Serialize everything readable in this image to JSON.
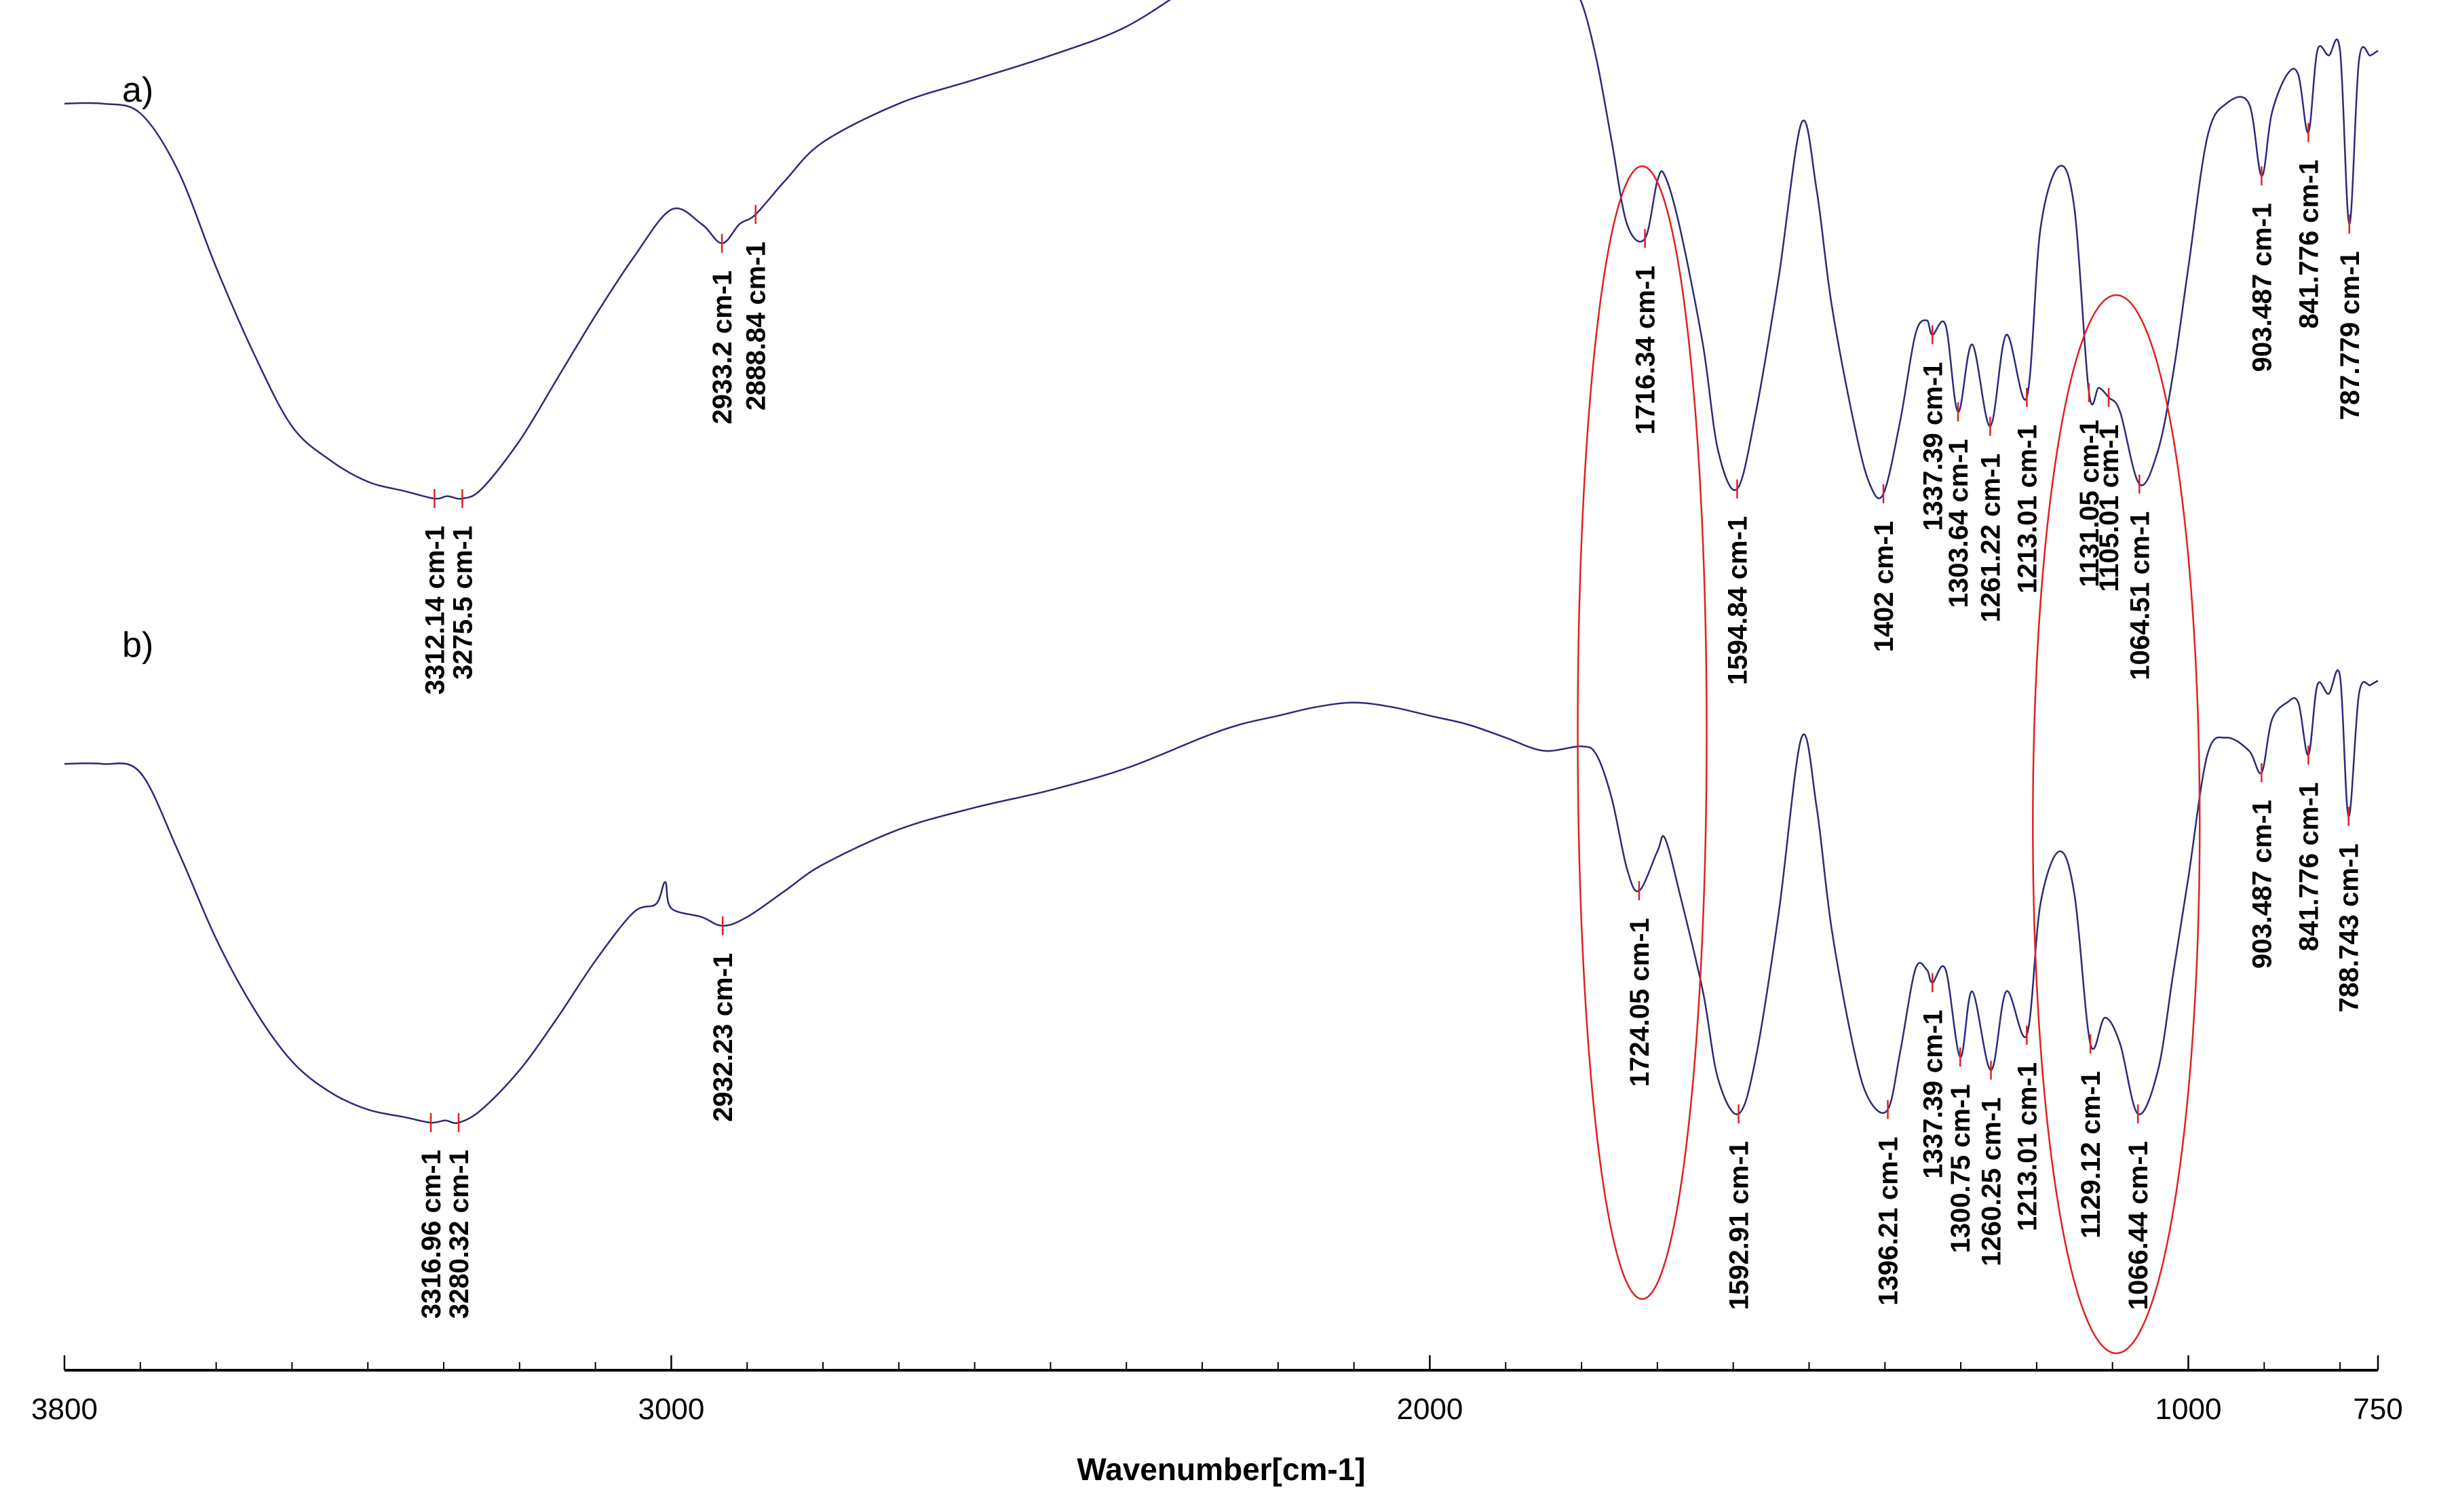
{
  "chart_data": {
    "type": "line",
    "xlabel": "Wavenumber[cm-1]",
    "xlim": [
      3800,
      750
    ],
    "x_reversed": true,
    "x_ticks": [
      3800,
      3000,
      2000,
      1000,
      750
    ],
    "grid": false,
    "colors": {
      "spectrum": "#2b2b7a",
      "ellipse": "#e02020",
      "marker": "#e02020"
    },
    "series": [
      {
        "panel_label": "a)",
        "x": [
          3800,
          3750,
          3700,
          3650,
          3600,
          3550,
          3500,
          3450,
          3400,
          3350,
          3312.14,
          3295,
          3275.5,
          3250,
          3200,
          3150,
          3100,
          3050,
          3000,
          2960,
          2933.2,
          2910,
          2888.84,
          2850,
          2800,
          2700,
          2600,
          2500,
          2400,
          2300,
          2250,
          2200,
          2150,
          2100,
          2050,
          2000,
          1950,
          1900,
          1850,
          1820,
          1800,
          1780,
          1760,
          1740,
          1716.34,
          1700,
          1690,
          1670,
          1640,
          1620,
          1594.84,
          1570,
          1540,
          1510,
          1490,
          1470,
          1440,
          1420,
          1402,
          1380,
          1360,
          1345,
          1337.39,
          1320,
          1303.64,
          1285,
          1261.22,
          1240,
          1213.01,
          1195,
          1170,
          1150,
          1131.05,
          1118,
          1105.01,
          1090,
          1064.51,
          1040,
          1020,
          1000,
          975,
          950,
          920,
          903.487,
          890,
          870,
          855,
          841.776,
          830,
          815,
          800,
          787.779,
          775,
          760,
          750
        ],
        "y": [
          0.82,
          0.82,
          0.8,
          0.68,
          0.48,
          0.3,
          0.15,
          0.08,
          0.035,
          0.015,
          0.0,
          0.005,
          0.0,
          0.02,
          0.12,
          0.25,
          0.38,
          0.5,
          0.6,
          0.57,
          0.53,
          0.57,
          0.59,
          0.66,
          0.74,
          0.82,
          0.87,
          0.92,
          0.98,
          1.08,
          1.12,
          1.16,
          1.18,
          1.19,
          1.18,
          1.16,
          1.12,
          1.09,
          1.05,
          1.07,
          1.03,
          0.91,
          0.74,
          0.57,
          0.54,
          0.66,
          0.67,
          0.56,
          0.32,
          0.1,
          0.02,
          0.18,
          0.46,
          0.78,
          0.64,
          0.4,
          0.15,
          0.03,
          0.01,
          0.16,
          0.34,
          0.37,
          0.34,
          0.36,
          0.18,
          0.32,
          0.15,
          0.34,
          0.21,
          0.56,
          0.69,
          0.6,
          0.22,
          0.23,
          0.21,
          0.18,
          0.03,
          0.1,
          0.26,
          0.48,
          0.75,
          0.82,
          0.82,
          0.67,
          0.8,
          0.88,
          0.88,
          0.76,
          0.93,
          0.92,
          0.93,
          0.57,
          0.91,
          0.92,
          0.93
        ]
      },
      {
        "panel_label": "b)",
        "x": [
          3800,
          3750,
          3700,
          3650,
          3600,
          3550,
          3500,
          3450,
          3400,
          3350,
          3316.96,
          3298,
          3280.32,
          3250,
          3200,
          3150,
          3100,
          3050,
          3020,
          3008,
          3000,
          2960,
          2932.23,
          2900,
          2850,
          2800,
          2700,
          2600,
          2500,
          2400,
          2300,
          2250,
          2200,
          2150,
          2100,
          2050,
          2000,
          1950,
          1900,
          1850,
          1800,
          1780,
          1760,
          1740,
          1724.05,
          1700,
          1690,
          1670,
          1640,
          1620,
          1592.91,
          1570,
          1540,
          1510,
          1490,
          1470,
          1440,
          1420,
          1396.21,
          1380,
          1360,
          1345,
          1337.39,
          1320,
          1300.75,
          1285,
          1260.25,
          1240,
          1213.01,
          1195,
          1170,
          1150,
          1129.12,
          1110,
          1090,
          1066.44,
          1040,
          1020,
          1000,
          975,
          950,
          920,
          903.487,
          890,
          870,
          855,
          841.776,
          830,
          815,
          800,
          788.743,
          775,
          760,
          750
        ],
        "y": [
          0.82,
          0.82,
          0.8,
          0.62,
          0.42,
          0.26,
          0.14,
          0.07,
          0.03,
          0.012,
          0.0,
          0.005,
          0.0,
          0.03,
          0.12,
          0.24,
          0.37,
          0.48,
          0.5,
          0.55,
          0.49,
          0.47,
          0.45,
          0.47,
          0.53,
          0.59,
          0.67,
          0.72,
          0.76,
          0.81,
          0.88,
          0.91,
          0.93,
          0.95,
          0.96,
          0.95,
          0.93,
          0.91,
          0.88,
          0.85,
          0.86,
          0.84,
          0.74,
          0.58,
          0.53,
          0.62,
          0.65,
          0.52,
          0.3,
          0.1,
          0.02,
          0.15,
          0.48,
          0.88,
          0.72,
          0.44,
          0.16,
          0.05,
          0.03,
          0.16,
          0.35,
          0.35,
          0.32,
          0.35,
          0.15,
          0.3,
          0.12,
          0.3,
          0.2,
          0.5,
          0.62,
          0.52,
          0.18,
          0.24,
          0.18,
          0.02,
          0.12,
          0.34,
          0.56,
          0.84,
          0.88,
          0.85,
          0.8,
          0.92,
          0.96,
          0.96,
          0.84,
          1.0,
          0.98,
          1.02,
          0.7,
          0.98,
          1.0,
          1.01
        ]
      }
    ],
    "peaks": [
      {
        "series": 0,
        "x": 3312.14,
        "label": "3312.14 cm-1"
      },
      {
        "series": 0,
        "x": 3275.5,
        "label": "3275.5 cm-1"
      },
      {
        "series": 0,
        "x": 2933.2,
        "label": "2933.2 cm-1"
      },
      {
        "series": 0,
        "x": 2888.84,
        "label": "2888.84 cm-1"
      },
      {
        "series": 0,
        "x": 1716.34,
        "label": "1716.34 cm-1"
      },
      {
        "series": 0,
        "x": 1594.84,
        "label": "1594.84 cm-1"
      },
      {
        "series": 0,
        "x": 1402,
        "label": "1402 cm-1"
      },
      {
        "series": 0,
        "x": 1337.39,
        "label": "1337.39 cm-1"
      },
      {
        "series": 0,
        "x": 1303.64,
        "label": "1303.64 cm-1"
      },
      {
        "series": 0,
        "x": 1261.22,
        "label": "1261.22 cm-1"
      },
      {
        "series": 0,
        "x": 1213.01,
        "label": "1213.01 cm-1"
      },
      {
        "series": 0,
        "x": 1131.05,
        "label": "1131.05 cm-1"
      },
      {
        "series": 0,
        "x": 1105.01,
        "label": "1105.01 cm-1"
      },
      {
        "series": 0,
        "x": 1064.51,
        "label": "1064.51 cm-1"
      },
      {
        "series": 0,
        "x": 903.487,
        "label": "903.487 cm-1"
      },
      {
        "series": 0,
        "x": 841.776,
        "label": "841.776 cm-1"
      },
      {
        "series": 0,
        "x": 787.779,
        "label": "787.779 cm-1"
      },
      {
        "series": 1,
        "x": 3316.96,
        "label": "3316.96 cm-1"
      },
      {
        "series": 1,
        "x": 3280.32,
        "label": "3280.32 cm-1"
      },
      {
        "series": 1,
        "x": 2932.23,
        "label": "2932.23 cm-1"
      },
      {
        "series": 1,
        "x": 1724.05,
        "label": "1724.05 cm-1"
      },
      {
        "series": 1,
        "x": 1592.91,
        "label": "1592.91 cm-1"
      },
      {
        "series": 1,
        "x": 1396.21,
        "label": "1396.21 cm-1"
      },
      {
        "series": 1,
        "x": 1337.39,
        "label": "1337.39 cm-1"
      },
      {
        "series": 1,
        "x": 1300.75,
        "label": "1300.75 cm-1"
      },
      {
        "series": 1,
        "x": 1260.25,
        "label": "1260.25 cm-1"
      },
      {
        "series": 1,
        "x": 1213.01,
        "label": "1213.01 cm-1"
      },
      {
        "series": 1,
        "x": 1129.12,
        "label": "1129.12 cm-1"
      },
      {
        "series": 1,
        "x": 1066.44,
        "label": "1066.44 cm-1"
      },
      {
        "series": 1,
        "x": 903.487,
        "label": "903.487 cm-1"
      },
      {
        "series": 1,
        "x": 841.776,
        "label": "841.776 cm-1"
      },
      {
        "series": 1,
        "x": 788.743,
        "label": "788.743 cm-1"
      }
    ],
    "highlight_regions": [
      {
        "center_x": 1720,
        "x_halfwidth": 85
      },
      {
        "center_x": 1095,
        "x_halfwidth": 110
      }
    ]
  }
}
